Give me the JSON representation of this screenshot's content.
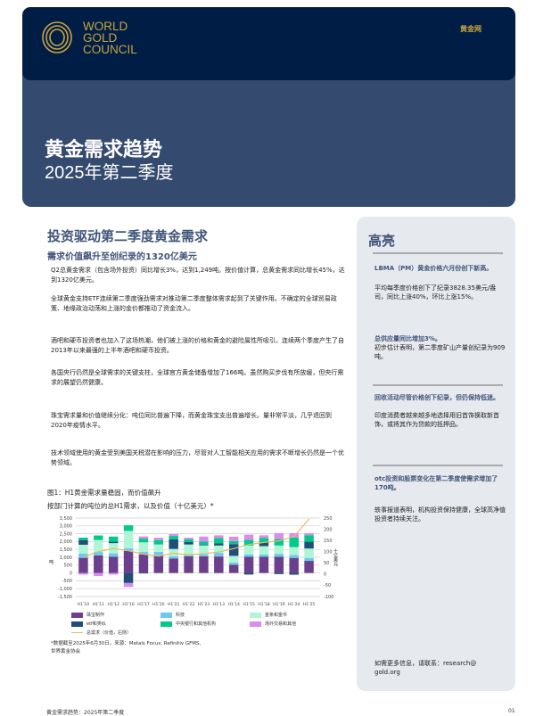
{
  "header": {
    "logo_lines": [
      "WORLD",
      "GOLD",
      "COUNCIL"
    ],
    "site_label": "黄金网",
    "title": "黄金需求趋势",
    "subtitle": "2025年第二季度",
    "colors": {
      "top": "#001e45",
      "band": "#344a6e",
      "gold": "#c9a341"
    }
  },
  "main": {
    "heading": "投资驱动第二季度黄金需求",
    "subheading": "需求价值飙升至创纪录的1320亿美元",
    "paragraphs": [
      "Q2总黄金需求（包含场外投资）同比增长3%，达到1,249吨。按价值计算，总黄金需求同比增长45%，达到1320亿美元。",
      "全球黄金支持ETF连续第二季度强劲需求对推动第二季度整体需求起到了关键作用。不确定的全球贸易政策、地缘政治动荡和上涨的金价都推动了资金流入。",
      "酒吧和硬币投资者也加入了这场热潮，他们被上涨的价格和黄金的避险属性所吸引。连续两个季度产生了自2013年以来最强的上半年酒吧和硬币投资。",
      "各国央行仍然是全球需求的关键支柱，全球官方黄金储备增加了166吨。虽然购买步伐有所放缓，但央行需求的展望仍然健康。",
      "珠宝需求量和价值继续分化：吨位同比普遍下降，而黄金珠宝支出普遍增长。量非常平淡，几乎退回到2020年疫情水平。",
      "技术领域使用的黄金受到美国关税潜在影响的压力，尽管对人工智能相关应用的需求不断增长仍然是一个优势领域。"
    ],
    "figure_title": "图1：H1黄金需求量稳固，而价值飙升",
    "figure_subtitle": "按部门计算的吨位的总H1需求，以及价值（十亿美元）*",
    "footnote": "*数据截至2025年6月30日。来源：Metals Focus, Refinitiv GFMS, 世界黄金协会"
  },
  "chart_data": {
    "type": "bar",
    "stacked": true,
    "categories": [
      "H1'10",
      "H1'11",
      "H1'12",
      "H1'16",
      "H1'17",
      "H1'20",
      "H1'21",
      "H1'22",
      "H1'23",
      "H1'13",
      "H1'14",
      "H1'15",
      "H1'18",
      "H1'19",
      "H1'24",
      "H1'25"
    ],
    "ylabel": "吨",
    "y2label": "十亿美元",
    "ylim": [
      -1500,
      3500
    ],
    "yticks": [
      "3,500",
      "3,000",
      "2,500",
      "2,000",
      "1,500",
      "1,000",
      "500",
      "0",
      "-500",
      "-1,000",
      "-1,500"
    ],
    "y2lim": [
      -100,
      250
    ],
    "y2ticks": [
      "250",
      "200",
      "150",
      "100",
      "50",
      "0",
      "-50",
      "-100"
    ],
    "grid": true,
    "legend_position": "bottom",
    "series": [
      {
        "name": "珠宝制作",
        "color": "#6b3f8c",
        "values": [
          965,
          1115,
          1040,
          1400,
          1190,
          1115,
          925,
          1060,
          1060,
          1050,
          530,
          1030,
          1030,
          1030,
          960,
          770
        ]
      },
      {
        "name": "科技",
        "color": "#6cc8f0",
        "values": [
          275,
          225,
          210,
          170,
          150,
          225,
          135,
          130,
          130,
          230,
          130,
          150,
          150,
          190,
          190,
          190
        ]
      },
      {
        "name": "金条和金币",
        "color": "#b0f5d6",
        "values": [
          560,
          760,
          650,
          1110,
          610,
          475,
          470,
          625,
          570,
          470,
          430,
          570,
          530,
          530,
          500,
          600
        ]
      },
      {
        "name": "etf和类似",
        "color": "#1f4e79",
        "values": [
          300,
          0,
          90,
          -640,
          -30,
          0,
          610,
          150,
          55,
          130,
          750,
          -100,
          230,
          -70,
          -110,
          430
        ]
      },
      {
        "name": "中央银行和其他机构",
        "color": "#00c98a",
        "values": [
          150,
          290,
          330,
          360,
          240,
          285,
          220,
          175,
          185,
          340,
          190,
          370,
          280,
          410,
          610,
          420
        ]
      },
      {
        "name": "场外交易和其他",
        "color": "#d98cf0",
        "values": [
          -100,
          -200,
          -100,
          -250,
          140,
          150,
          120,
          110,
          320,
          180,
          280,
          320,
          180,
          380,
          280,
          130
        ]
      }
    ],
    "line": {
      "name": "总需求（价值，右侧）",
      "color": "#e8b96a",
      "axis": "right",
      "values": [
        76,
        100,
        114,
        104,
        89,
        80,
        93,
        86,
        91,
        98,
        114,
        132,
        141,
        148,
        168,
        246
      ]
    }
  },
  "sidebar": {
    "title": "高亮",
    "items": [
      {
        "heading": "LBMA（PM）黄金价格六月份创下新高。",
        "text": "平均每季度价格创下了纪录3828.35美元/盎司，同比上涨40%，环比上涨15%。"
      },
      {
        "heading": "总供应量同比增加3%。",
        "text": "初步估计表明，第二季度矿山产量创纪录为909吨。"
      },
      {
        "heading": "回收活动尽管价格创下纪录，但仍保持低迷。",
        "text": "印度消费者越来越多地选择用旧首饰换取新首饰，或将其作为贷款的抵押品。"
      },
      {
        "heading": "otc投资和股票变化在第二季度使需求增加了170吨。",
        "text": "轶事报道表明，机构投资保持健康，全球高净值投资者持续关注。"
      }
    ],
    "contact": "如需更多信息，请联系：research@gold.org"
  },
  "footer": {
    "left": "黄金需求趋势：2025年第二季度",
    "page": "01"
  }
}
